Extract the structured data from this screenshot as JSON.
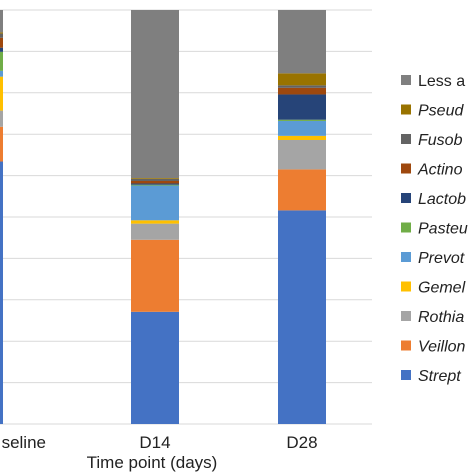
{
  "chart_data": {
    "type": "bar",
    "stacked": true,
    "normalized": true,
    "categories": [
      "Baseline",
      "D14",
      "D28"
    ],
    "category_labels": [
      "seline",
      "D14",
      "D28"
    ],
    "xlabel": "Time point (days)",
    "ylim": [
      0,
      100
    ],
    "grid": true,
    "legend_position": "right",
    "series": [
      {
        "name": "Strept",
        "legend_label": "Strept",
        "color": "#4472C4",
        "italic": true,
        "values": [
          63.4,
          27.1,
          51.6
        ]
      },
      {
        "name": "Veillon",
        "legend_label": "Veillon",
        "color": "#ED7D31",
        "italic": true,
        "values": [
          8.4,
          17.4,
          9.9
        ]
      },
      {
        "name": "Rothia",
        "legend_label": "Rothia",
        "color": "#A5A5A5",
        "italic": true,
        "values": [
          3.9,
          3.9,
          7.1
        ]
      },
      {
        "name": "Gemell",
        "legend_label": "Gemel",
        "color": "#FFC000",
        "italic": true,
        "values": [
          8.2,
          0.8,
          1.0
        ]
      },
      {
        "name": "Prevot",
        "legend_label": "Prevot",
        "color": "#5B9BD5",
        "italic": true,
        "values": [
          1.4,
          8.4,
          3.6
        ]
      },
      {
        "name": "Pasteu",
        "legend_label": "Pasteu",
        "color": "#70AD47",
        "italic": true,
        "values": [
          4.6,
          0.2,
          0.3
        ]
      },
      {
        "name": "Lactob",
        "legend_label": "Lactob",
        "color": "#264478",
        "italic": true,
        "values": [
          1.0,
          0.3,
          6.1
        ]
      },
      {
        "name": "Actino",
        "legend_label": "Actino",
        "color": "#9E480E",
        "italic": true,
        "values": [
          2.4,
          0.6,
          1.6
        ]
      },
      {
        "name": "Fusob",
        "legend_label": "Fusob",
        "color": "#636363",
        "italic": true,
        "values": [
          1.0,
          0.5,
          0.6
        ]
      },
      {
        "name": "Pseud",
        "legend_label": "Pseud",
        "color": "#997300",
        "italic": true,
        "values": [
          0.3,
          0.2,
          2.9
        ]
      },
      {
        "name": "Less a",
        "legend_label": "Less a",
        "color": "#7F7F7F",
        "italic": false,
        "values": [
          5.4,
          40.6,
          15.3
        ]
      }
    ]
  }
}
